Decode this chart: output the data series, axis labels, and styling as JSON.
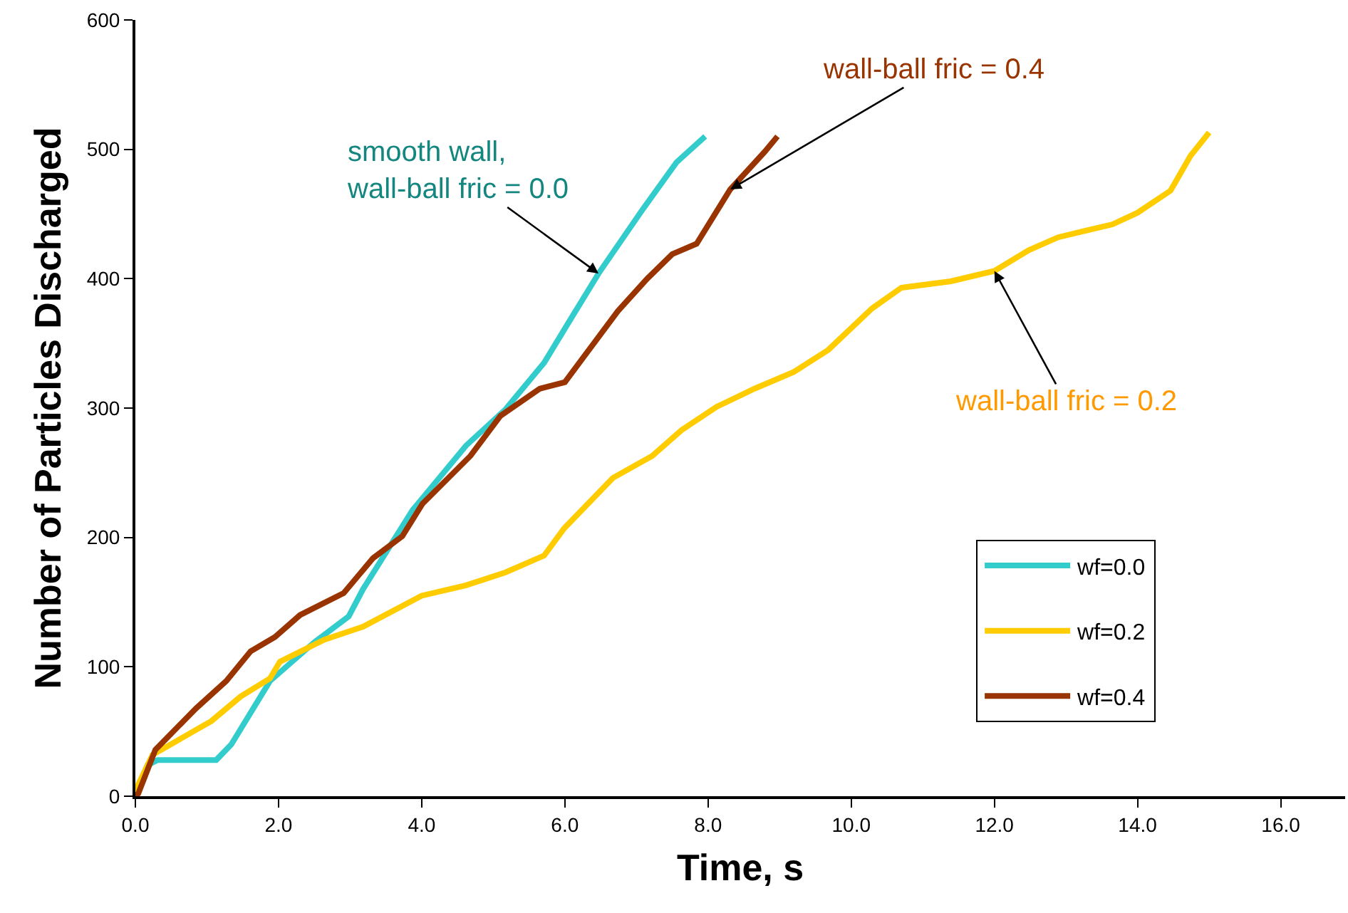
{
  "chart_data": {
    "type": "line",
    "xlabel": "Time, s",
    "ylabel": "Number of Particles Discharged",
    "xlim": [
      0,
      16.9
    ],
    "ylim": [
      0,
      600
    ],
    "xticks": [
      {
        "value": 0,
        "label": "0.0"
      },
      {
        "value": 2,
        "label": "2.0"
      },
      {
        "value": 4,
        "label": "4.0"
      },
      {
        "value": 6,
        "label": "6.0"
      },
      {
        "value": 8,
        "label": "8.0"
      },
      {
        "value": 10,
        "label": "10.0"
      },
      {
        "value": 12,
        "label": "12.0"
      },
      {
        "value": 14,
        "label": "14.0"
      },
      {
        "value": 16,
        "label": "16.0"
      }
    ],
    "yticks": [
      0,
      100,
      200,
      300,
      400,
      500,
      600
    ],
    "grid": false,
    "legend": "bottom right",
    "marker": "none",
    "line_style": "solid",
    "series": [
      {
        "name": "wf=0.0",
        "color": "#33cccc",
        "x": [
          0,
          0.17,
          0.31,
          1.13,
          1.34,
          1.88,
          2.5,
          2.98,
          3.18,
          3.87,
          4.62,
          5.17,
          5.71,
          6.05,
          6.47,
          7.08,
          7.56,
          7.96
        ],
        "values": [
          0,
          24,
          28,
          28,
          40,
          89,
          119,
          139,
          160,
          221,
          271,
          299,
          335,
          366,
          404,
          453,
          490,
          510
        ]
      },
      {
        "name": "wf=0.2",
        "color": "#ffcc00",
        "x": [
          0,
          0.04,
          0.24,
          1.06,
          1.47,
          1.88,
          2.02,
          2.64,
          3.18,
          4.0,
          4.62,
          5.17,
          5.71,
          5.99,
          6.67,
          7.22,
          7.63,
          8.12,
          8.65,
          9.2,
          9.68,
          10.29,
          10.7,
          11.39,
          12.0,
          12.48,
          12.89,
          13.65,
          14.0,
          14.46,
          14.74,
          15.0
        ],
        "values": [
          0,
          9,
          32,
          58,
          77,
          91,
          104,
          121,
          131,
          155,
          163,
          173,
          186,
          207,
          246,
          263,
          283,
          301,
          315,
          328,
          345,
          377,
          393,
          398,
          406,
          422,
          432,
          442,
          451,
          468,
          495,
          513
        ]
      },
      {
        "name": "wf=0.4",
        "color": "#993300",
        "x": [
          0,
          0.04,
          0.28,
          0.85,
          1.27,
          1.61,
          1.95,
          2.3,
          2.91,
          3.32,
          3.73,
          4.01,
          4.68,
          5.1,
          5.65,
          6.0,
          6.74,
          7.15,
          7.5,
          7.84,
          8.31,
          8.79,
          8.97
        ],
        "values": [
          0,
          2,
          36,
          68,
          89,
          112,
          123,
          140,
          157,
          184,
          201,
          226,
          263,
          294,
          315,
          320,
          375,
          400,
          419,
          427,
          469,
          498,
          510
        ]
      }
    ],
    "annotations": [
      {
        "text": "smooth wall,\nwall-ball fric = 0.0",
        "x": 6.47,
        "y": 404
      },
      {
        "text": "wall-ball fric = 0.4",
        "x": 8.31,
        "y": 469
      },
      {
        "text": "wall-ball fric = 0.2",
        "x": 12.0,
        "y": 406
      }
    ]
  }
}
